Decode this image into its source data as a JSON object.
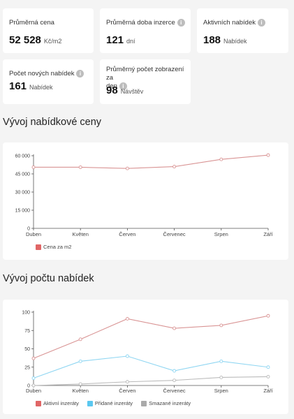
{
  "stats": [
    {
      "label": "Průměrná cena",
      "value": "52 528",
      "unit": "Kč/m2",
      "info": false
    },
    {
      "label": "Průměrná doba inzerce",
      "value": "121",
      "unit": "dní",
      "info": true
    },
    {
      "label": "Aktivních nabídek",
      "value": "188",
      "unit": "Nabídek",
      "info": true
    },
    {
      "label": "Počet nových nabídek",
      "value": "161",
      "unit": "Nabídek",
      "info": true
    },
    {
      "label_line1": "Průměrný počet zobrazení za",
      "label_line2": "den",
      "value": "98",
      "unit": "Návštěv",
      "info": true
    }
  ],
  "info_glyph": "i",
  "sections": {
    "price_title": "Vývoj nabídkové ceny",
    "count_title": "Vývoj počtu nabídek"
  },
  "chart_data": [
    {
      "type": "line",
      "categories": [
        "Duben",
        "Květen",
        "Červen",
        "Červenec",
        "Srpen",
        "Září"
      ],
      "yticks": [
        "0",
        "15 000",
        "30 000",
        "45 000",
        "60 000"
      ],
      "ylim": [
        0,
        60000
      ],
      "series": [
        {
          "name": "Cena za m2",
          "color": "#e06666",
          "line_color": "#d99494",
          "values": [
            50500,
            50500,
            49500,
            51000,
            57000,
            60500
          ]
        }
      ],
      "legend_position": "bottom-left",
      "grid": false
    },
    {
      "type": "line",
      "categories": [
        "Duben",
        "Květen",
        "Červen",
        "Červenec",
        "Srpen",
        "Září"
      ],
      "yticks": [
        "0",
        "25",
        "50",
        "75",
        "100"
      ],
      "ylim": [
        0,
        100
      ],
      "series": [
        {
          "name": "Aktivní inzeráty",
          "color": "#e06666",
          "line_color": "#d99494",
          "values": [
            37,
            63,
            91,
            78,
            82,
            95
          ]
        },
        {
          "name": "Přidané inzeráty",
          "color": "#5bc8f0",
          "line_color": "#8fd6f2",
          "values": [
            10,
            33,
            40,
            20,
            33,
            25
          ]
        },
        {
          "name": "Smazané inzeráty",
          "color": "#aaaaaa",
          "line_color": "#bbbbbb",
          "values": [
            0,
            2,
            5,
            7,
            11,
            12
          ]
        }
      ],
      "legend_position": "bottom-left",
      "grid": false
    }
  ]
}
